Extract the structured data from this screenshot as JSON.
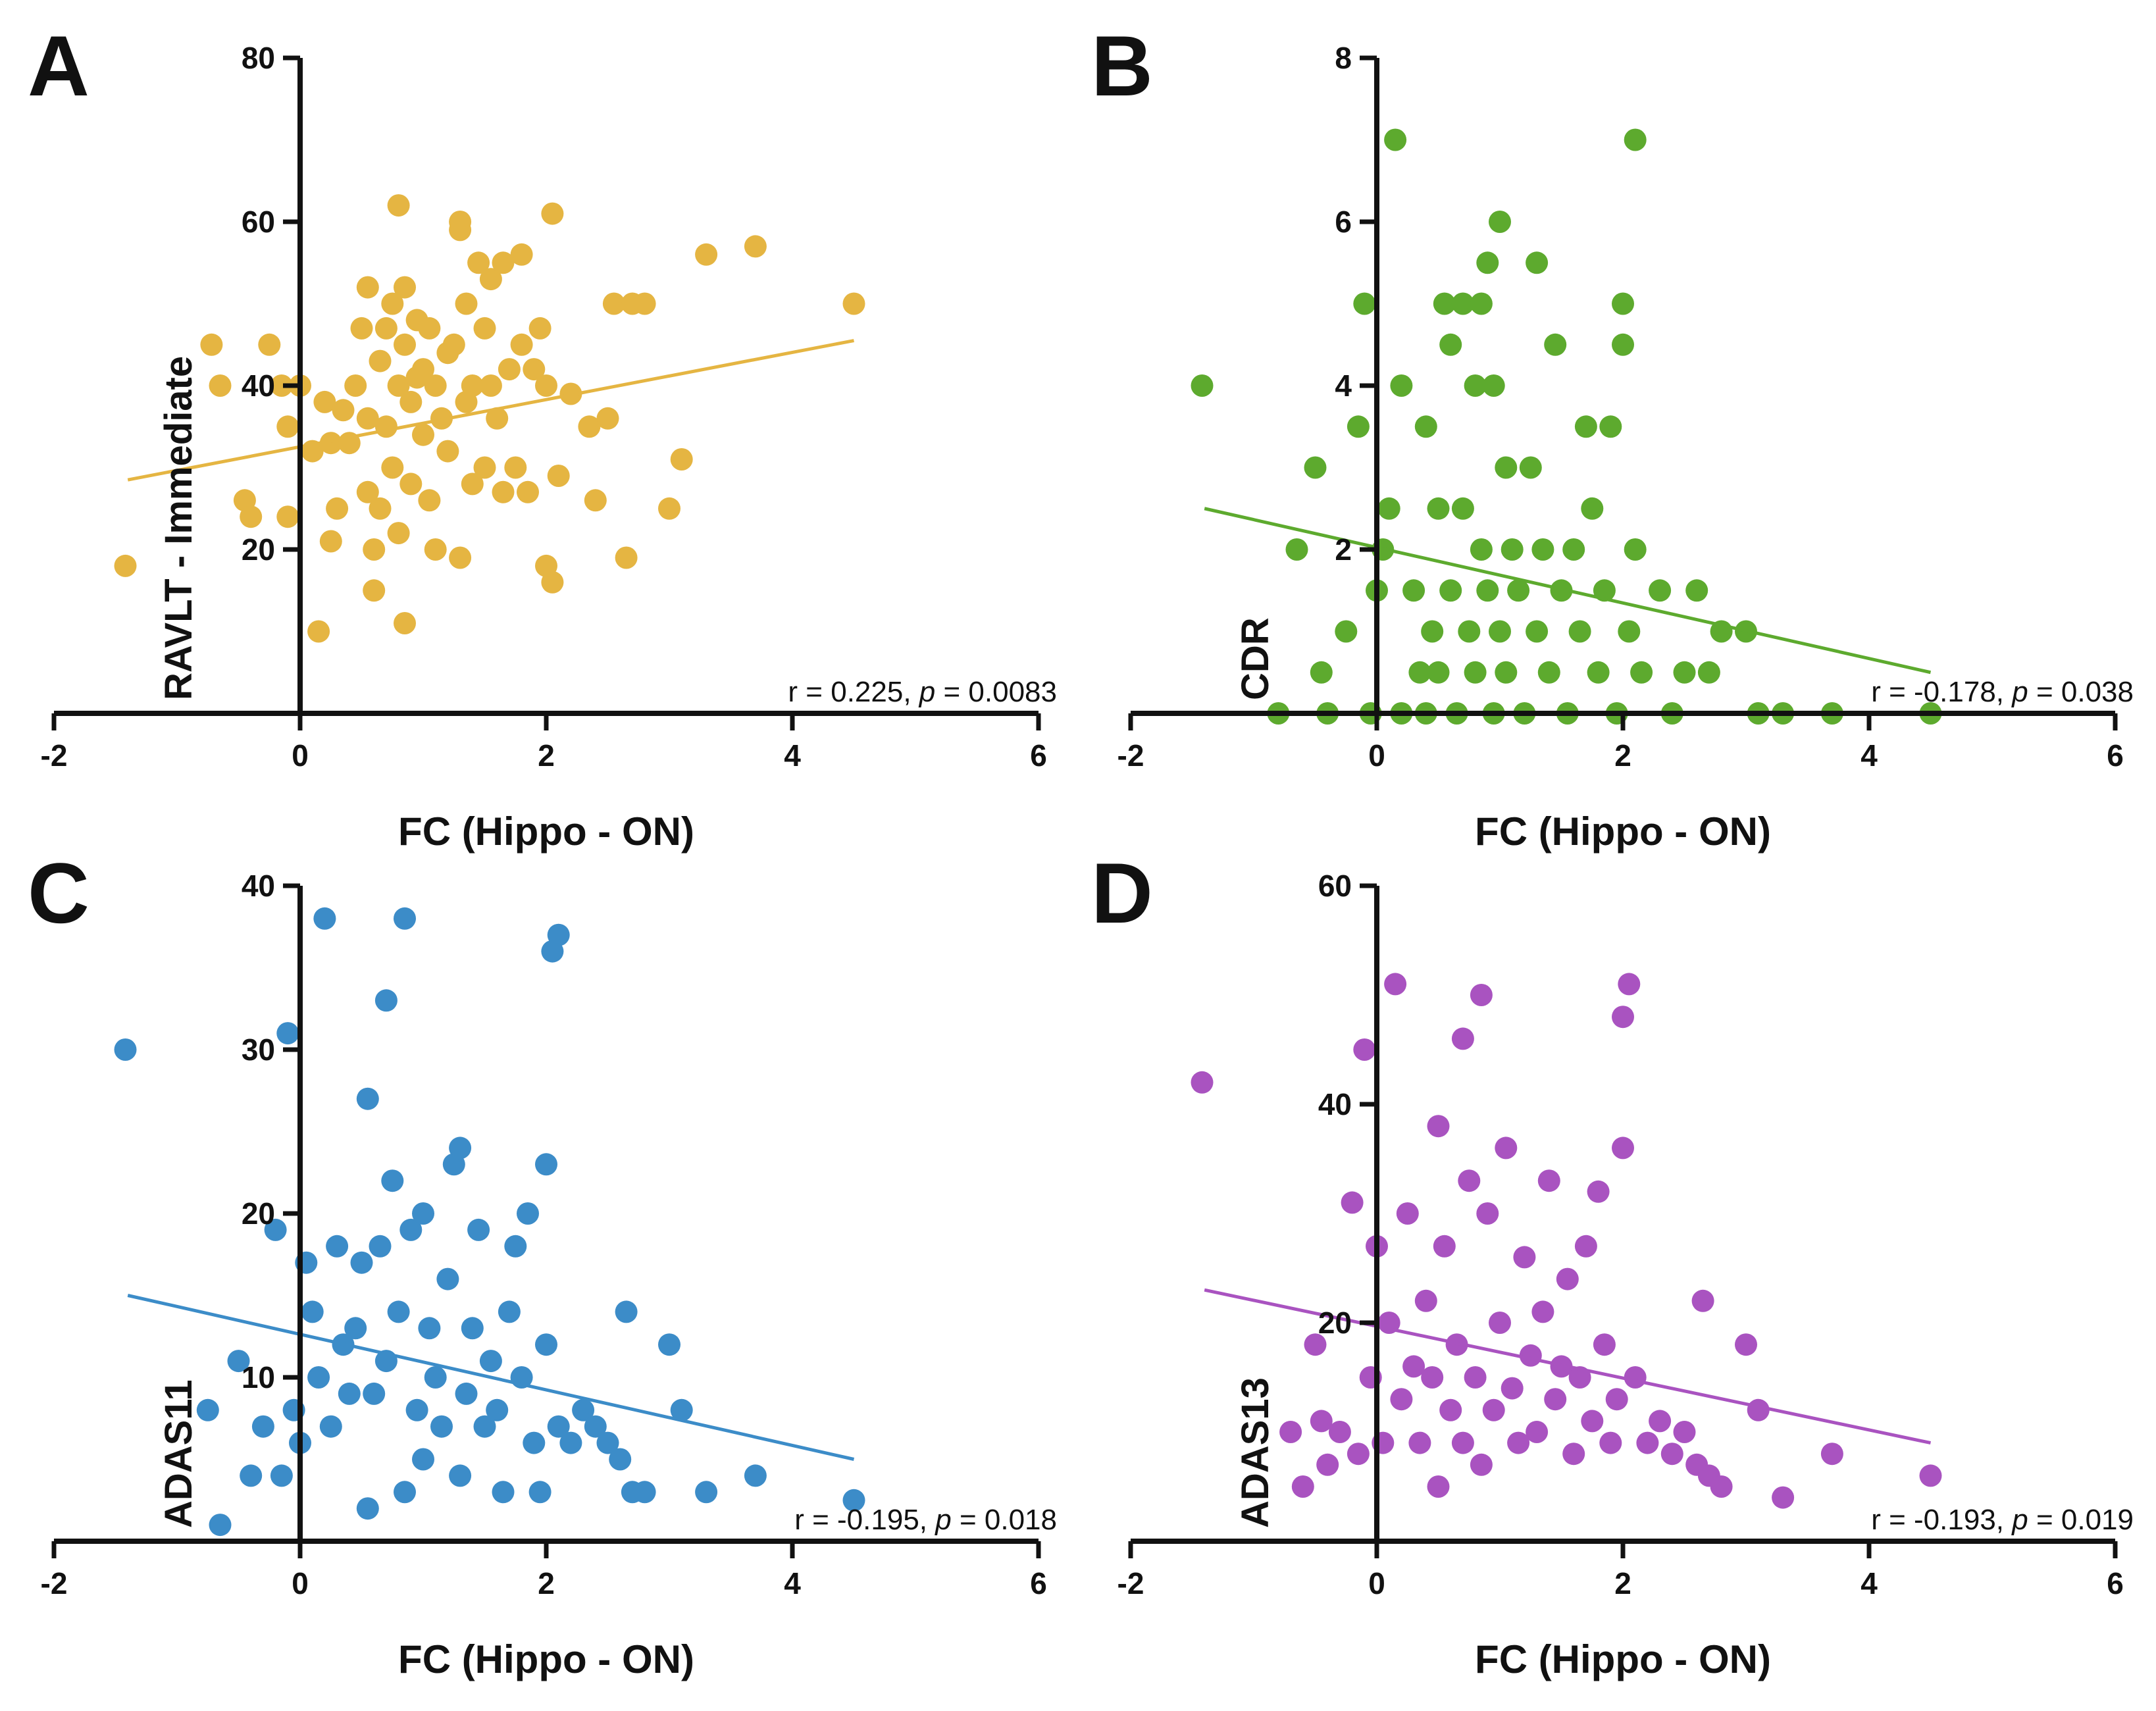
{
  "chart_data": [
    {
      "panel": "A",
      "type": "scatter",
      "xlabel": "FC (Hippo - ON)",
      "ylabel": "RAVLT - Immediate",
      "xlim": [
        -2,
        6
      ],
      "ylim": [
        0,
        80
      ],
      "xticks": [
        "-2",
        "0",
        "2",
        "4",
        "6"
      ],
      "yticks": [
        "20",
        "40",
        "60",
        "80"
      ],
      "color": "#E5B542",
      "stat_prefix": "r = 0.225, ",
      "p_label": "p",
      "stat_suffix": " = 0.0083",
      "fit": {
        "x": [
          -1.4,
          4.5
        ],
        "y": [
          28.5,
          45.5
        ]
      },
      "points": [
        [
          -1.42,
          18
        ],
        [
          -0.72,
          45
        ],
        [
          -0.65,
          40
        ],
        [
          -0.45,
          26
        ],
        [
          -0.4,
          24
        ],
        [
          -0.25,
          45
        ],
        [
          -0.15,
          40
        ],
        [
          -0.1,
          24
        ],
        [
          -0.1,
          35
        ],
        [
          0.0,
          40
        ],
        [
          0.1,
          32
        ],
        [
          0.15,
          10
        ],
        [
          0.2,
          38
        ],
        [
          0.25,
          33
        ],
        [
          0.25,
          21
        ],
        [
          0.3,
          25
        ],
        [
          0.35,
          37
        ],
        [
          0.4,
          33
        ],
        [
          0.45,
          40
        ],
        [
          0.5,
          47
        ],
        [
          0.55,
          52
        ],
        [
          0.55,
          36
        ],
        [
          0.55,
          27
        ],
        [
          0.6,
          20
        ],
        [
          0.6,
          15
        ],
        [
          0.65,
          43
        ],
        [
          0.65,
          25
        ],
        [
          0.7,
          47
        ],
        [
          0.7,
          35
        ],
        [
          0.75,
          50
        ],
        [
          0.75,
          30
        ],
        [
          0.8,
          62
        ],
        [
          0.8,
          40
        ],
        [
          0.8,
          22
        ],
        [
          0.85,
          52
        ],
        [
          0.85,
          45
        ],
        [
          0.85,
          11
        ],
        [
          0.9,
          38
        ],
        [
          0.9,
          28
        ],
        [
          0.95,
          48
        ],
        [
          0.95,
          41
        ],
        [
          1.0,
          42
        ],
        [
          1.0,
          34
        ],
        [
          1.05,
          47
        ],
        [
          1.05,
          26
        ],
        [
          1.1,
          40
        ],
        [
          1.1,
          20
        ],
        [
          1.15,
          36
        ],
        [
          1.2,
          44
        ],
        [
          1.2,
          32
        ],
        [
          1.25,
          45
        ],
        [
          1.3,
          60
        ],
        [
          1.3,
          59
        ],
        [
          1.3,
          19
        ],
        [
          1.35,
          50
        ],
        [
          1.35,
          38
        ],
        [
          1.4,
          40
        ],
        [
          1.4,
          28
        ],
        [
          1.45,
          55
        ],
        [
          1.5,
          47
        ],
        [
          1.5,
          30
        ],
        [
          1.55,
          53
        ],
        [
          1.55,
          40
        ],
        [
          1.6,
          36
        ],
        [
          1.65,
          55
        ],
        [
          1.65,
          27
        ],
        [
          1.7,
          42
        ],
        [
          1.75,
          30
        ],
        [
          1.8,
          56
        ],
        [
          1.8,
          45
        ],
        [
          1.85,
          27
        ],
        [
          1.9,
          42
        ],
        [
          1.95,
          47
        ],
        [
          2.0,
          40
        ],
        [
          2.0,
          18
        ],
        [
          2.05,
          61
        ],
        [
          2.05,
          16
        ],
        [
          2.1,
          29
        ],
        [
          2.2,
          39
        ],
        [
          2.35,
          35
        ],
        [
          2.4,
          26
        ],
        [
          2.5,
          36
        ],
        [
          2.55,
          50
        ],
        [
          2.65,
          19
        ],
        [
          2.7,
          50
        ],
        [
          2.8,
          50
        ],
        [
          3.0,
          25
        ],
        [
          3.1,
          31
        ],
        [
          3.3,
          56
        ],
        [
          3.7,
          57
        ],
        [
          4.5,
          50
        ]
      ]
    },
    {
      "panel": "B",
      "type": "scatter",
      "xlabel": "FC (Hippo - ON)",
      "ylabel": "CDR",
      "xlim": [
        -2,
        6
      ],
      "ylim": [
        0,
        8
      ],
      "xticks": [
        "-2",
        "0",
        "2",
        "4",
        "6"
      ],
      "yticks": [
        "2",
        "4",
        "6",
        "8"
      ],
      "color": "#5DAA2E",
      "stat_prefix": "r = -0.178, ",
      "p_label": "p",
      "stat_suffix": " = 0.038",
      "fit": {
        "x": [
          -1.4,
          4.5
        ],
        "y": [
          2.5,
          0.5
        ]
      },
      "points": [
        [
          -1.42,
          4
        ],
        [
          -0.8,
          0
        ],
        [
          -0.65,
          2
        ],
        [
          -0.5,
          3
        ],
        [
          -0.45,
          0.5
        ],
        [
          -0.4,
          0
        ],
        [
          -0.25,
          1
        ],
        [
          -0.15,
          3.5
        ],
        [
          -0.1,
          5
        ],
        [
          -0.05,
          0
        ],
        [
          0.0,
          1.5
        ],
        [
          0.05,
          2
        ],
        [
          0.1,
          2.5
        ],
        [
          0.15,
          7
        ],
        [
          0.2,
          4
        ],
        [
          0.2,
          0
        ],
        [
          0.3,
          1.5
        ],
        [
          0.35,
          0.5
        ],
        [
          0.4,
          3.5
        ],
        [
          0.4,
          0
        ],
        [
          0.45,
          1
        ],
        [
          0.5,
          2.5
        ],
        [
          0.5,
          0.5
        ],
        [
          0.55,
          5
        ],
        [
          0.6,
          4.5
        ],
        [
          0.6,
          1.5
        ],
        [
          0.65,
          0
        ],
        [
          0.7,
          5
        ],
        [
          0.7,
          2.5
        ],
        [
          0.75,
          1
        ],
        [
          0.8,
          4
        ],
        [
          0.8,
          0.5
        ],
        [
          0.85,
          5
        ],
        [
          0.85,
          2
        ],
        [
          0.9,
          5.5
        ],
        [
          0.9,
          1.5
        ],
        [
          0.95,
          4
        ],
        [
          0.95,
          0
        ],
        [
          1.0,
          6
        ],
        [
          1.0,
          1
        ],
        [
          1.05,
          3
        ],
        [
          1.05,
          0.5
        ],
        [
          1.1,
          2
        ],
        [
          1.15,
          1.5
        ],
        [
          1.2,
          0
        ],
        [
          1.25,
          3
        ],
        [
          1.3,
          5.5
        ],
        [
          1.3,
          1
        ],
        [
          1.35,
          2
        ],
        [
          1.4,
          0.5
        ],
        [
          1.45,
          4.5
        ],
        [
          1.5,
          1.5
        ],
        [
          1.55,
          0
        ],
        [
          1.6,
          2
        ],
        [
          1.65,
          1
        ],
        [
          1.7,
          3.5
        ],
        [
          1.75,
          2.5
        ],
        [
          1.8,
          0.5
        ],
        [
          1.85,
          1.5
        ],
        [
          1.9,
          3.5
        ],
        [
          1.95,
          0
        ],
        [
          2.0,
          5
        ],
        [
          2.0,
          4.5
        ],
        [
          2.05,
          1
        ],
        [
          2.1,
          7
        ],
        [
          2.1,
          2
        ],
        [
          2.15,
          0.5
        ],
        [
          2.3,
          1.5
        ],
        [
          2.4,
          0
        ],
        [
          2.5,
          0.5
        ],
        [
          2.6,
          1.5
        ],
        [
          2.7,
          0.5
        ],
        [
          2.8,
          1
        ],
        [
          3.0,
          1
        ],
        [
          3.1,
          0
        ],
        [
          3.3,
          0
        ],
        [
          3.7,
          0
        ],
        [
          4.5,
          0
        ]
      ]
    },
    {
      "panel": "C",
      "type": "scatter",
      "xlabel": "FC (Hippo - ON)",
      "ylabel": "ADAS11",
      "xlim": [
        -2,
        6
      ],
      "ylim": [
        0,
        40
      ],
      "xticks": [
        "-2",
        "0",
        "2",
        "4",
        "6"
      ],
      "yticks": [
        "10",
        "20",
        "30",
        "40"
      ],
      "color": "#3C8CC8",
      "stat_prefix": "r = -0.195, ",
      "p_label": "p",
      "stat_suffix": " = 0.018",
      "fit": {
        "x": [
          -1.4,
          4.5
        ],
        "y": [
          15,
          5
        ]
      },
      "points": [
        [
          -1.42,
          30
        ],
        [
          -0.75,
          8
        ],
        [
          -0.65,
          1
        ],
        [
          -0.5,
          11
        ],
        [
          -0.4,
          4
        ],
        [
          -0.3,
          7
        ],
        [
          -0.2,
          19
        ],
        [
          -0.15,
          4
        ],
        [
          -0.1,
          31
        ],
        [
          -0.05,
          8
        ],
        [
          0.0,
          6
        ],
        [
          0.05,
          17
        ],
        [
          0.1,
          14
        ],
        [
          0.15,
          10
        ],
        [
          0.2,
          38
        ],
        [
          0.25,
          7
        ],
        [
          0.3,
          18
        ],
        [
          0.35,
          12
        ],
        [
          0.4,
          9
        ],
        [
          0.45,
          13
        ],
        [
          0.5,
          17
        ],
        [
          0.55,
          27
        ],
        [
          0.55,
          2
        ],
        [
          0.6,
          9
        ],
        [
          0.65,
          18
        ],
        [
          0.7,
          33
        ],
        [
          0.7,
          11
        ],
        [
          0.75,
          22
        ],
        [
          0.8,
          14
        ],
        [
          0.85,
          38
        ],
        [
          0.85,
          3
        ],
        [
          0.9,
          19
        ],
        [
          0.95,
          8
        ],
        [
          1.0,
          20
        ],
        [
          1.0,
          5
        ],
        [
          1.05,
          13
        ],
        [
          1.1,
          10
        ],
        [
          1.15,
          7
        ],
        [
          1.2,
          16
        ],
        [
          1.25,
          23
        ],
        [
          1.3,
          24
        ],
        [
          1.3,
          4
        ],
        [
          1.35,
          9
        ],
        [
          1.4,
          13
        ],
        [
          1.45,
          19
        ],
        [
          1.5,
          7
        ],
        [
          1.55,
          11
        ],
        [
          1.6,
          8
        ],
        [
          1.65,
          3
        ],
        [
          1.7,
          14
        ],
        [
          1.75,
          18
        ],
        [
          1.8,
          10
        ],
        [
          1.85,
          20
        ],
        [
          1.9,
          6
        ],
        [
          1.95,
          3
        ],
        [
          2.0,
          23
        ],
        [
          2.0,
          12
        ],
        [
          2.05,
          36
        ],
        [
          2.1,
          37
        ],
        [
          2.1,
          7
        ],
        [
          2.2,
          6
        ],
        [
          2.3,
          8
        ],
        [
          2.4,
          7
        ],
        [
          2.5,
          6
        ],
        [
          2.6,
          5
        ],
        [
          2.65,
          14
        ],
        [
          2.7,
          3
        ],
        [
          2.8,
          3
        ],
        [
          3.0,
          12
        ],
        [
          3.1,
          8
        ],
        [
          3.3,
          3
        ],
        [
          3.7,
          4
        ],
        [
          4.5,
          2.5
        ]
      ]
    },
    {
      "panel": "D",
      "type": "scatter",
      "xlabel": "FC (Hippo - ON)",
      "ylabel": "ADAS13",
      "xlim": [
        -2,
        6
      ],
      "ylim": [
        0,
        60
      ],
      "xticks": [
        "-2",
        "0",
        "2",
        "4",
        "6"
      ],
      "yticks": [
        "20",
        "40",
        "60"
      ],
      "color": "#A953C0",
      "stat_prefix": "r = -0.193, ",
      "p_label": "p",
      "stat_suffix": " = 0.019",
      "fit": {
        "x": [
          -1.4,
          4.5
        ],
        "y": [
          23,
          9
        ]
      },
      "points": [
        [
          -1.42,
          42
        ],
        [
          -0.7,
          10
        ],
        [
          -0.6,
          5
        ],
        [
          -0.5,
          18
        ],
        [
          -0.45,
          11
        ],
        [
          -0.4,
          7
        ],
        [
          -0.3,
          10
        ],
        [
          -0.2,
          31
        ],
        [
          -0.15,
          8
        ],
        [
          -0.1,
          45
        ],
        [
          -0.05,
          15
        ],
        [
          0.0,
          27
        ],
        [
          0.05,
          9
        ],
        [
          0.1,
          20
        ],
        [
          0.15,
          51
        ],
        [
          0.2,
          13
        ],
        [
          0.25,
          30
        ],
        [
          0.3,
          16
        ],
        [
          0.35,
          9
        ],
        [
          0.4,
          22
        ],
        [
          0.45,
          15
        ],
        [
          0.5,
          38
        ],
        [
          0.5,
          5
        ],
        [
          0.55,
          27
        ],
        [
          0.6,
          12
        ],
        [
          0.65,
          18
        ],
        [
          0.7,
          46
        ],
        [
          0.7,
          9
        ],
        [
          0.75,
          33
        ],
        [
          0.8,
          15
        ],
        [
          0.85,
          50
        ],
        [
          0.85,
          7
        ],
        [
          0.9,
          30
        ],
        [
          0.95,
          12
        ],
        [
          1.0,
          20
        ],
        [
          1.05,
          36
        ],
        [
          1.1,
          14
        ],
        [
          1.15,
          9
        ],
        [
          1.2,
          26
        ],
        [
          1.25,
          17
        ],
        [
          1.3,
          10
        ],
        [
          1.35,
          21
        ],
        [
          1.4,
          33
        ],
        [
          1.45,
          13
        ],
        [
          1.5,
          16
        ],
        [
          1.55,
          24
        ],
        [
          1.6,
          8
        ],
        [
          1.65,
          15
        ],
        [
          1.7,
          27
        ],
        [
          1.75,
          11
        ],
        [
          1.8,
          32
        ],
        [
          1.85,
          18
        ],
        [
          1.9,
          9
        ],
        [
          1.95,
          13
        ],
        [
          2.0,
          36
        ],
        [
          2.0,
          48
        ],
        [
          2.05,
          51
        ],
        [
          2.1,
          15
        ],
        [
          2.2,
          9
        ],
        [
          2.3,
          11
        ],
        [
          2.4,
          8
        ],
        [
          2.5,
          10
        ],
        [
          2.6,
          7
        ],
        [
          2.65,
          22
        ],
        [
          2.7,
          6
        ],
        [
          2.8,
          5
        ],
        [
          3.0,
          18
        ],
        [
          3.1,
          12
        ],
        [
          3.3,
          4
        ],
        [
          3.7,
          8
        ],
        [
          4.5,
          6
        ]
      ]
    }
  ]
}
